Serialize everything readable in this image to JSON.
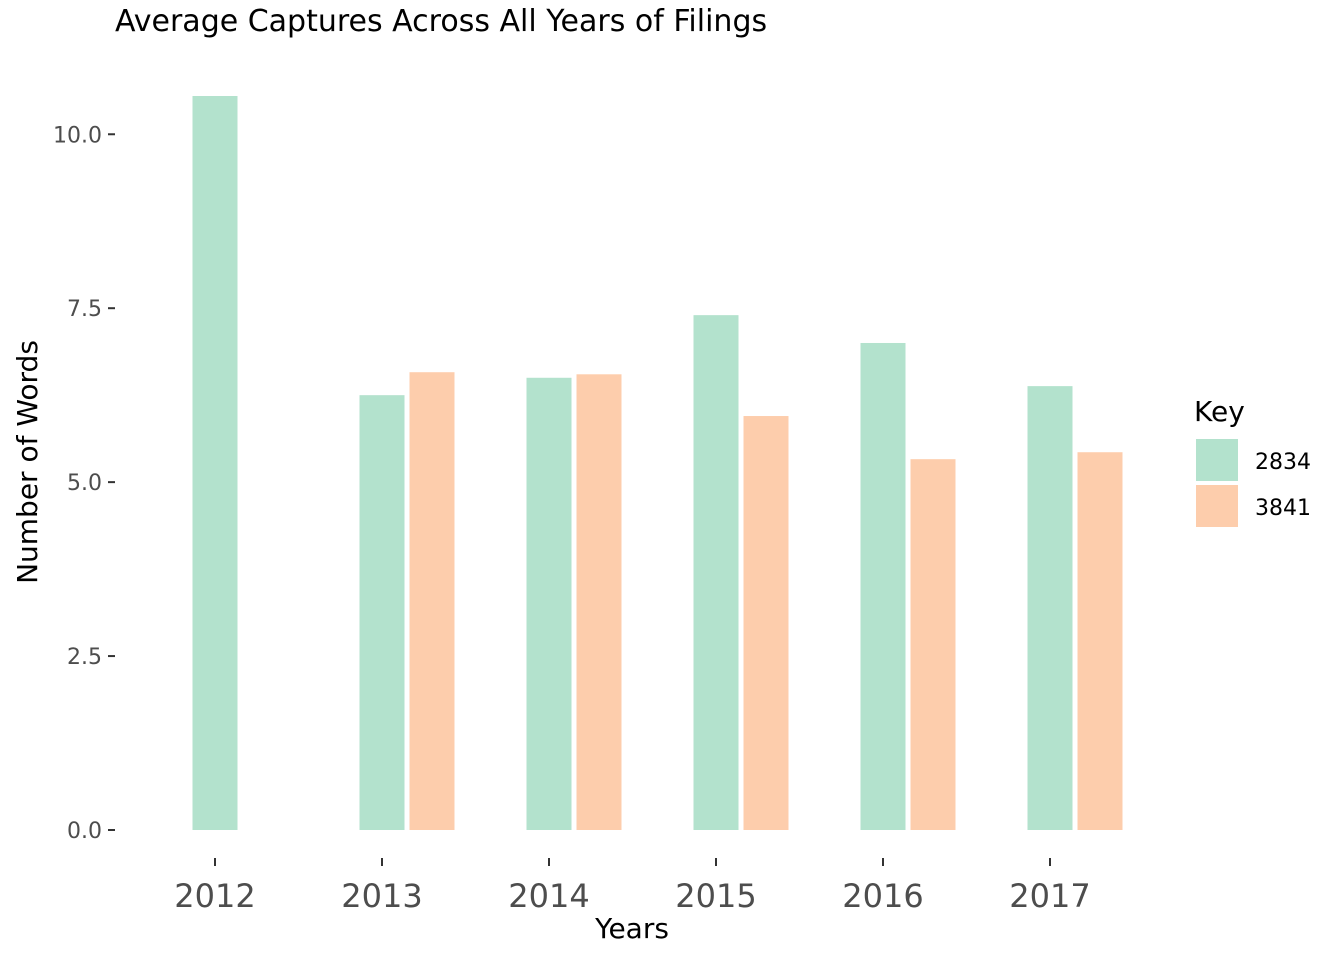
{
  "chart_data": {
    "type": "bar",
    "title": "Average Captures Across All Years of Filings",
    "xlabel": "Years",
    "ylabel": "Number of Words",
    "categories": [
      "2012",
      "2013",
      "2014",
      "2015",
      "2016",
      "2017"
    ],
    "series": [
      {
        "name": "2834",
        "color": "#b3e2cd",
        "values": [
          10.55,
          6.25,
          6.5,
          7.4,
          7.0,
          6.38
        ]
      },
      {
        "name": "3841",
        "color": "#fdcdac",
        "values": [
          null,
          6.58,
          6.55,
          5.95,
          5.33,
          5.43
        ]
      }
    ],
    "ylim": [
      0,
      10.55
    ],
    "yticks": [
      0,
      2.5,
      5,
      7.5,
      10
    ],
    "ytick_labels": [
      "0.0",
      "2.5",
      "5.0",
      "7.5",
      "10.0"
    ],
    "grid": false,
    "legend": {
      "title": "Key",
      "position": "right"
    }
  }
}
